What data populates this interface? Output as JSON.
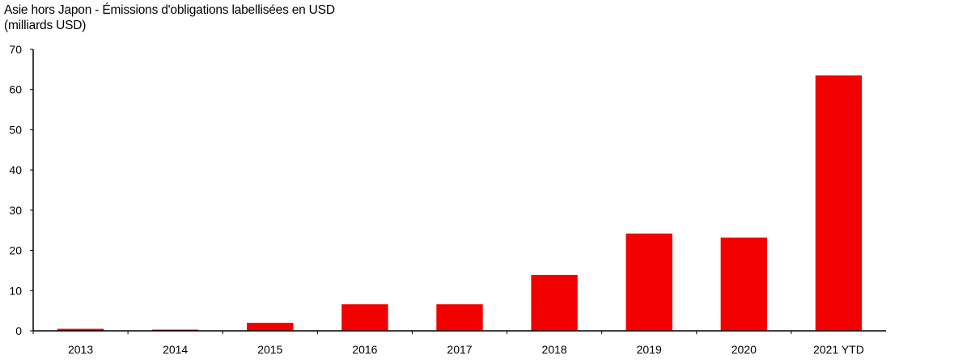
{
  "chart_data": {
    "type": "bar",
    "title": "Asie hors Japon - Émissions d'obligations labellisées en USD",
    "subtitle": "(milliards USD)",
    "categories": [
      "2013",
      "2014",
      "2015",
      "2016",
      "2017",
      "2018",
      "2019",
      "2020",
      "2021 YTD"
    ],
    "values": [
      0.5,
      0.3,
      2.0,
      6.6,
      6.6,
      13.9,
      24.2,
      23.2,
      63.5
    ],
    "xlabel": "",
    "ylabel": "",
    "ylim": [
      0,
      70
    ],
    "yticks": [
      0,
      10,
      20,
      30,
      40,
      50,
      60,
      70
    ],
    "grid": false,
    "legend": "none",
    "bar_color": "#f20000",
    "axis_color": "#000000"
  }
}
